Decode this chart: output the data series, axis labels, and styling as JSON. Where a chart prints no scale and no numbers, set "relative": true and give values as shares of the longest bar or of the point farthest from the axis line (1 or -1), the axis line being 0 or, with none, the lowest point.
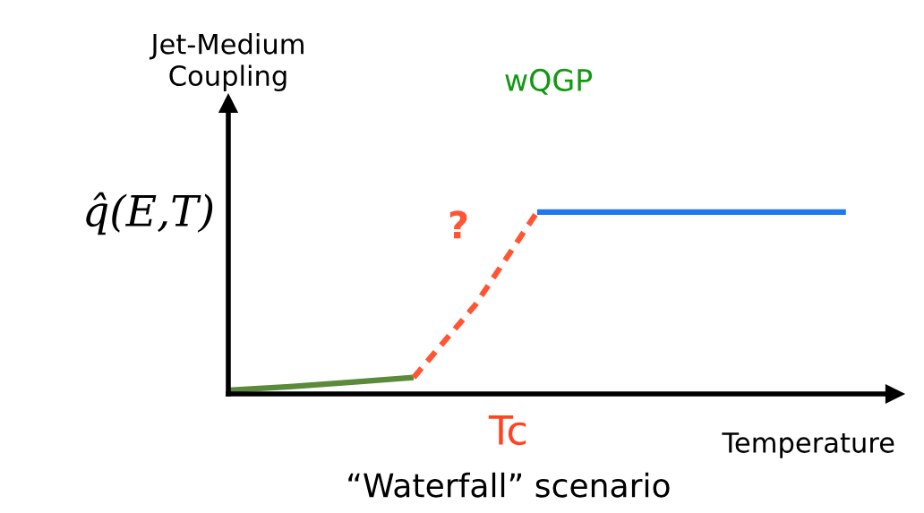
{
  "chart_data": {
    "type": "line",
    "relative": true,
    "ylabel": "Jet-Medium Coupling",
    "xlabel": "Temperature",
    "categories": [
      null,
      null,
      null,
      null,
      null,
      null,
      null,
      null,
      null,
      null,
      null
    ],
    "series": [
      {
        "values": [
          0.02,
          0.04,
          0.065,
          0.09,
          null,
          null,
          null,
          null,
          null,
          null,
          null
        ],
        "color": "#5b8a3a",
        "line_style": "solid"
      },
      {
        "values": [
          null,
          null,
          null,
          0.09,
          0.49,
          1.0,
          null,
          null,
          null,
          null,
          null
        ],
        "color": "#ff5533",
        "line_style": "dashed"
      },
      {
        "values": [
          null,
          null,
          null,
          null,
          null,
          1.0,
          1.0,
          1.0,
          1.0,
          1.0,
          1.0
        ],
        "color": "#1e78f0",
        "line_style": "solid"
      }
    ],
    "annotations": [
      "q̂(E,T)",
      "wQGP",
      "?",
      "Tc",
      "“Waterfall” scenario"
    ]
  }
}
